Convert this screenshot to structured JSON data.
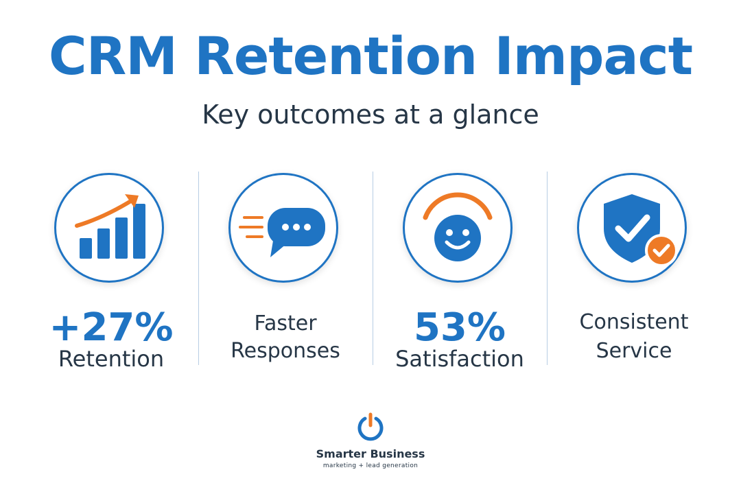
{
  "title": "CRM Retention Impact",
  "subtitle": "Key outcomes at a glance",
  "colors": {
    "primary": "#1f74c3",
    "accent": "#ee7a26",
    "text": "#263646",
    "divider": "#b7cde3"
  },
  "stats": [
    {
      "icon": "growth-chart-icon",
      "metric": "+27%",
      "label": "Retention"
    },
    {
      "icon": "chat-bubble-icon",
      "metric": "",
      "label_line1": "Faster",
      "label_line2": "Responses"
    },
    {
      "icon": "smiley-face-icon",
      "metric": "53%",
      "label": "Satisfaction"
    },
    {
      "icon": "shield-check-icon",
      "metric": "",
      "label_line1": "Consistent",
      "label_line2": "Service"
    }
  ],
  "logo": {
    "icon": "power-icon",
    "brand": "Smarter Business",
    "tagline": "marketing + lead generation"
  }
}
